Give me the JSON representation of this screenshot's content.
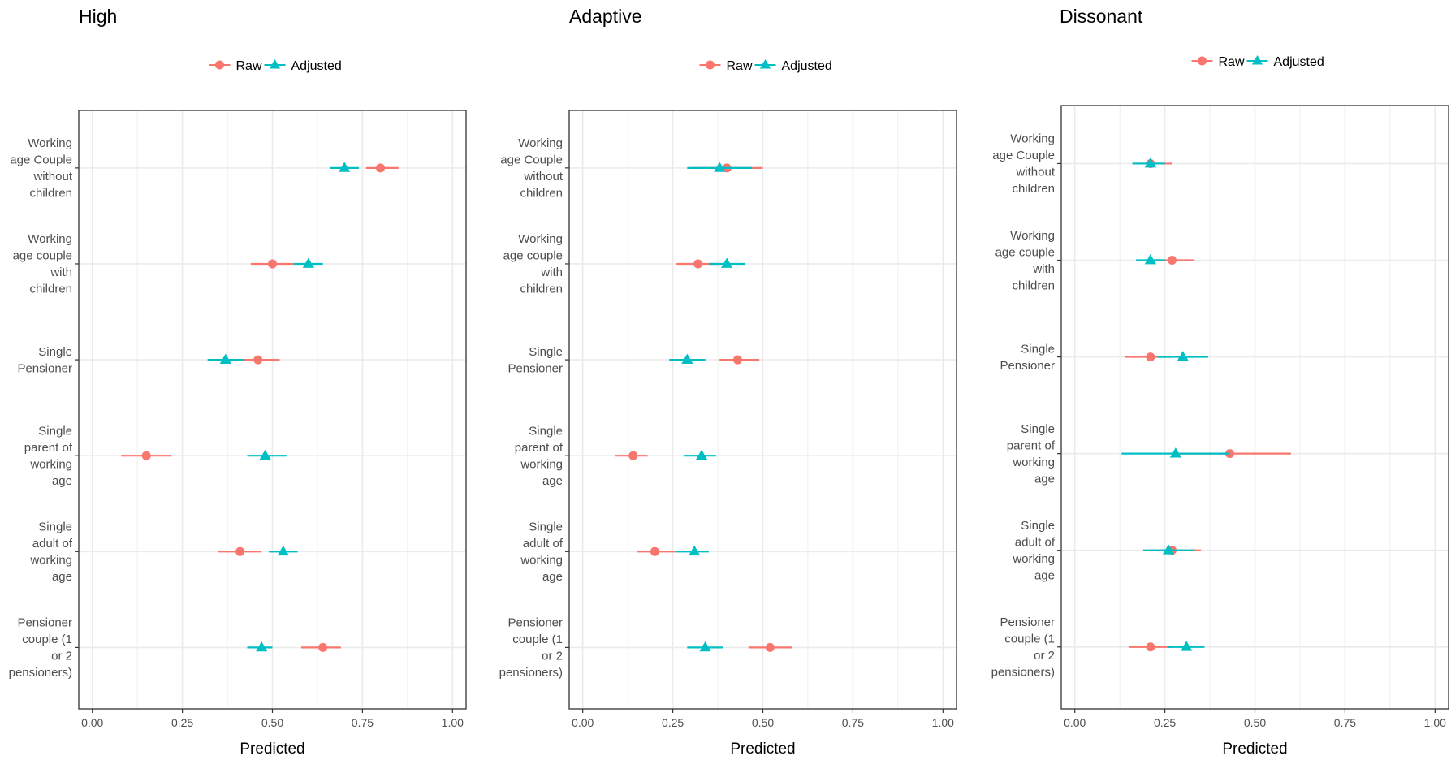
{
  "legend_labels": [
    "Raw",
    "Adjusted"
  ],
  "colors": {
    "raw": "#F8766D",
    "adjusted": "#00BFC4",
    "grid": "#EBEBEB",
    "border": "#333333",
    "text": "#4d4d4d"
  },
  "chart_data": [
    {
      "type": "scatter",
      "title": "High",
      "xlabel": "Predicted",
      "ylabel": "",
      "xlim": [
        0,
        1
      ],
      "xticks": [
        "0.00",
        "0.25",
        "0.50",
        "0.75",
        "1.00"
      ],
      "categories": [
        [
          "Working",
          "age Couple",
          "without",
          "children"
        ],
        [
          "Working",
          "age couple",
          "with",
          "children"
        ],
        [
          "Single",
          "Pensioner"
        ],
        [
          "Single",
          "parent of",
          "working",
          "age"
        ],
        [
          "Single",
          "adult of",
          "working",
          "age"
        ],
        [
          "Pensioner",
          "couple (1",
          "or 2",
          "pensioners)"
        ]
      ],
      "series": [
        {
          "name": "Raw",
          "marker": "circle",
          "values": [
            0.8,
            0.5,
            0.46,
            0.15,
            0.41,
            0.64
          ],
          "ci": [
            [
              0.76,
              0.85
            ],
            [
              0.44,
              0.56
            ],
            [
              0.41,
              0.52
            ],
            [
              0.08,
              0.22
            ],
            [
              0.35,
              0.47
            ],
            [
              0.58,
              0.69
            ]
          ]
        },
        {
          "name": "Adjusted",
          "marker": "triangle",
          "values": [
            0.7,
            0.6,
            0.37,
            0.48,
            0.53,
            0.47
          ],
          "ci": [
            [
              0.66,
              0.74
            ],
            [
              0.56,
              0.64
            ],
            [
              0.32,
              0.42
            ],
            [
              0.43,
              0.54
            ],
            [
              0.49,
              0.57
            ],
            [
              0.43,
              0.5
            ]
          ]
        }
      ],
      "legend": "top"
    },
    {
      "type": "scatter",
      "title": "Adaptive",
      "xlabel": "Predicted",
      "ylabel": "",
      "xlim": [
        0,
        1
      ],
      "xticks": [
        "0.00",
        "0.25",
        "0.50",
        "0.75",
        "1.00"
      ],
      "categories": [
        [
          "Working",
          "age Couple",
          "without",
          "children"
        ],
        [
          "Working",
          "age couple",
          "with",
          "children"
        ],
        [
          "Single",
          "Pensioner"
        ],
        [
          "Single",
          "parent of",
          "working",
          "age"
        ],
        [
          "Single",
          "adult of",
          "working",
          "age"
        ],
        [
          "Pensioner",
          "couple (1",
          "or 2",
          "pensioners)"
        ]
      ],
      "series": [
        {
          "name": "Raw",
          "marker": "circle",
          "values": [
            0.4,
            0.32,
            0.43,
            0.14,
            0.2,
            0.52
          ],
          "ci": [
            [
              0.3,
              0.5
            ],
            [
              0.26,
              0.38
            ],
            [
              0.38,
              0.49
            ],
            [
              0.09,
              0.18
            ],
            [
              0.15,
              0.26
            ],
            [
              0.46,
              0.58
            ]
          ]
        },
        {
          "name": "Adjusted",
          "marker": "triangle",
          "values": [
            0.38,
            0.4,
            0.29,
            0.33,
            0.31,
            0.34
          ],
          "ci": [
            [
              0.29,
              0.47
            ],
            [
              0.35,
              0.45
            ],
            [
              0.24,
              0.34
            ],
            [
              0.28,
              0.37
            ],
            [
              0.26,
              0.35
            ],
            [
              0.29,
              0.39
            ]
          ]
        }
      ],
      "legend": "top"
    },
    {
      "type": "scatter",
      "title": "Dissonant",
      "xlabel": "Predicted",
      "ylabel": "",
      "xlim": [
        0,
        1
      ],
      "xticks": [
        "0.00",
        "0.25",
        "0.50",
        "0.75",
        "1.00"
      ],
      "categories": [
        [
          "Working",
          "age Couple",
          "without",
          "children"
        ],
        [
          "Working",
          "age couple",
          "with",
          "children"
        ],
        [
          "Single",
          "Pensioner"
        ],
        [
          "Single",
          "parent of",
          "working",
          "age"
        ],
        [
          "Single",
          "adult of",
          "working",
          "age"
        ],
        [
          "Pensioner",
          "couple (1",
          "or 2",
          "pensioners)"
        ]
      ],
      "series": [
        {
          "name": "Raw",
          "marker": "circle",
          "values": [
            0.21,
            0.27,
            0.21,
            0.43,
            0.27,
            0.21
          ],
          "ci": [
            [
              0.16,
              0.27
            ],
            [
              0.22,
              0.33
            ],
            [
              0.14,
              0.27
            ],
            [
              0.27,
              0.6
            ],
            [
              0.2,
              0.35
            ],
            [
              0.15,
              0.27
            ]
          ]
        },
        {
          "name": "Adjusted",
          "marker": "triangle",
          "values": [
            0.21,
            0.21,
            0.3,
            0.28,
            0.26,
            0.31
          ],
          "ci": [
            [
              0.16,
              0.25
            ],
            [
              0.17,
              0.25
            ],
            [
              0.23,
              0.37
            ],
            [
              0.13,
              0.43
            ],
            [
              0.19,
              0.33
            ],
            [
              0.26,
              0.36
            ]
          ]
        }
      ],
      "legend": "top"
    }
  ]
}
